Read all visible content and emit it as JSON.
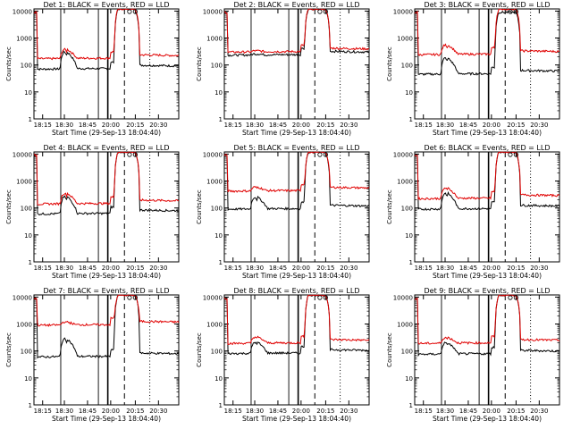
{
  "figure": {
    "background": "#ffffff",
    "axis_color": "#000000"
  },
  "chart_data": [
    {
      "type": "line",
      "title": "Det 1: BLACK = Events, RED = LLD",
      "xlabel": "Start Time (29-Sep-13 18:04:40)",
      "ylabel": "Counts/sec",
      "xtick_labels": [
        "18:15",
        "18:30",
        "18:45",
        "20:00",
        "20:15",
        "20:30"
      ],
      "ytick_labels": [
        "1",
        "10",
        "100",
        "1000",
        "10000"
      ],
      "yscale": "log",
      "ylim": [
        1,
        12000
      ],
      "grid": false,
      "series": [
        {
          "name": "Events",
          "color": "#000000",
          "base": 70,
          "bump": 300,
          "peak": 12000,
          "start_jump": 9000
        },
        {
          "name": "LLD",
          "color": "#e00000",
          "base": 170,
          "bump": 380,
          "peak": 12000,
          "start_jump": 9000
        }
      ]
    },
    {
      "type": "line",
      "title": "Det 2: BLACK = Events, RED = LLD",
      "xlabel": "Start Time (29-Sep-13 18:04:40)",
      "ylabel": "Counts/sec",
      "xtick_labels": [
        "18:15",
        "18:30",
        "18:45",
        "20:00",
        "20:15",
        "20:30"
      ],
      "ytick_labels": [
        "1",
        "10",
        "100",
        "1000",
        "10000"
      ],
      "yscale": "log",
      "ylim": [
        1,
        12000
      ],
      "grid": false,
      "series": [
        {
          "name": "Events",
          "color": "#000000",
          "base": 230,
          "bump": 260,
          "peak": 12000,
          "start_jump": 9000
        },
        {
          "name": "LLD",
          "color": "#e00000",
          "base": 300,
          "bump": 340,
          "peak": 12000,
          "start_jump": 9000
        }
      ]
    },
    {
      "type": "line",
      "title": "Det 3: BLACK = Events, RED = LLD",
      "xlabel": "Start Time (29-Sep-13 18:04:40)",
      "ylabel": "Counts/sec",
      "xtick_labels": [
        "18:15",
        "18:30",
        "18:45",
        "20:00",
        "20:15",
        "20:30"
      ],
      "ytick_labels": [
        "1",
        "10",
        "100",
        "1000",
        "10000"
      ],
      "yscale": "log",
      "ylim": [
        1,
        12000
      ],
      "grid": false,
      "series": [
        {
          "name": "Events",
          "color": "#000000",
          "base": 45,
          "bump": 180,
          "peak": 9000,
          "start_jump": 9000
        },
        {
          "name": "LLD",
          "color": "#e00000",
          "base": 240,
          "bump": 550,
          "peak": 12000,
          "start_jump": 9000
        }
      ]
    },
    {
      "type": "line",
      "title": "Det 4: BLACK = Events, RED = LLD",
      "xlabel": "Start Time (29-Sep-13 18:04:40)",
      "ylabel": "Counts/sec",
      "xtick_labels": [
        "18:15",
        "18:30",
        "18:45",
        "20:00",
        "20:15",
        "20:30"
      ],
      "ytick_labels": [
        "1",
        "10",
        "100",
        "1000",
        "10000"
      ],
      "yscale": "log",
      "ylim": [
        1,
        12000
      ],
      "grid": false,
      "series": [
        {
          "name": "Events",
          "color": "#000000",
          "base": 60,
          "bump": 260,
          "peak": 12000,
          "start_jump": 9000
        },
        {
          "name": "LLD",
          "color": "#e00000",
          "base": 140,
          "bump": 350,
          "peak": 12000,
          "start_jump": 9000
        }
      ]
    },
    {
      "type": "line",
      "title": "Det 5: BLACK = Events, RED = LLD",
      "xlabel": "Start Time (29-Sep-13 18:04:40)",
      "ylabel": "Counts/sec",
      "xtick_labels": [
        "18:15",
        "18:30",
        "18:45",
        "20:00",
        "20:15",
        "20:30"
      ],
      "ytick_labels": [
        "1",
        "10",
        "100",
        "1000",
        "10000"
      ],
      "yscale": "log",
      "ylim": [
        1,
        12000
      ],
      "grid": false,
      "series": [
        {
          "name": "Events",
          "color": "#000000",
          "base": 90,
          "bump": 250,
          "peak": 12000,
          "start_jump": 9000
        },
        {
          "name": "LLD",
          "color": "#e00000",
          "base": 420,
          "bump": 600,
          "peak": 12000,
          "start_jump": 9000
        }
      ]
    },
    {
      "type": "line",
      "title": "Det 6: BLACK = Events, RED = LLD",
      "xlabel": "Start Time (29-Sep-13 18:04:40)",
      "ylabel": "Counts/sec",
      "xtick_labels": [
        "18:15",
        "18:30",
        "18:45",
        "20:00",
        "20:15",
        "20:30"
      ],
      "ytick_labels": [
        "1",
        "10",
        "100",
        "1000",
        "10000"
      ],
      "yscale": "log",
      "ylim": [
        1,
        12000
      ],
      "grid": false,
      "series": [
        {
          "name": "Events",
          "color": "#000000",
          "base": 90,
          "bump": 350,
          "peak": 12000,
          "start_jump": 9000
        },
        {
          "name": "LLD",
          "color": "#e00000",
          "base": 220,
          "bump": 550,
          "peak": 12000,
          "start_jump": 9000
        }
      ]
    },
    {
      "type": "line",
      "title": "Det 7: BLACK = Events, RED = LLD",
      "xlabel": "Start Time (29-Sep-13 18:04:40)",
      "ylabel": "Counts/sec",
      "xtick_labels": [
        "18:15",
        "18:30",
        "18:45",
        "20:00",
        "20:15",
        "20:30"
      ],
      "ytick_labels": [
        "1",
        "10",
        "100",
        "1000",
        "10000"
      ],
      "yscale": "log",
      "ylim": [
        1,
        12000
      ],
      "grid": false,
      "series": [
        {
          "name": "Events",
          "color": "#000000",
          "base": 60,
          "bump": 280,
          "peak": 12000,
          "start_jump": 9000
        },
        {
          "name": "LLD",
          "color": "#e00000",
          "base": 900,
          "bump": 1200,
          "peak": 12000,
          "start_jump": 9000
        }
      ]
    },
    {
      "type": "line",
      "title": "Det 8: BLACK = Events, RED = LLD",
      "xlabel": "Start Time (29-Sep-13 18:04:40)",
      "ylabel": "Counts/sec",
      "xtick_labels": [
        "18:15",
        "18:30",
        "18:45",
        "20:00",
        "20:15",
        "20:30"
      ],
      "ytick_labels": [
        "1",
        "10",
        "100",
        "1000",
        "10000"
      ],
      "yscale": "log",
      "ylim": [
        1,
        12000
      ],
      "grid": false,
      "series": [
        {
          "name": "Events",
          "color": "#000000",
          "base": 80,
          "bump": 210,
          "peak": 12000,
          "start_jump": 9000
        },
        {
          "name": "LLD",
          "color": "#e00000",
          "base": 190,
          "bump": 330,
          "peak": 12000,
          "start_jump": 9000
        }
      ]
    },
    {
      "type": "line",
      "title": "Det 9: BLACK = Events, RED = LLD",
      "xlabel": "Start Time (29-Sep-13 18:04:40)",
      "ylabel": "Counts/sec",
      "xtick_labels": [
        "18:15",
        "18:30",
        "18:45",
        "20:00",
        "20:15",
        "20:30"
      ],
      "ytick_labels": [
        "1",
        "10",
        "100",
        "1000",
        "10000"
      ],
      "yscale": "log",
      "ylim": [
        1,
        12000
      ],
      "grid": false,
      "series": [
        {
          "name": "Events",
          "color": "#000000",
          "base": 75,
          "bump": 200,
          "peak": 12000,
          "start_jump": 9000
        },
        {
          "name": "LLD",
          "color": "#e00000",
          "base": 190,
          "bump": 320,
          "peak": 12000,
          "start_jump": 9000
        }
      ]
    }
  ]
}
